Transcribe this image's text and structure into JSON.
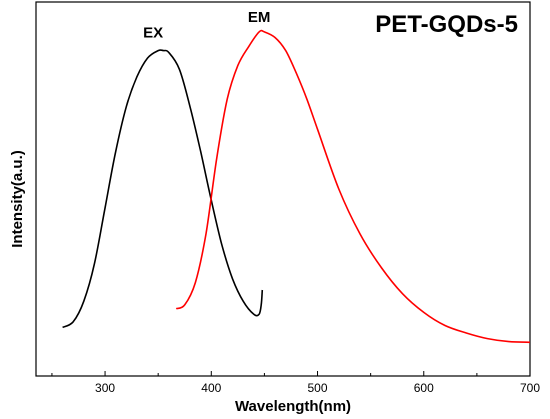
{
  "chart_data": {
    "type": "line",
    "title": "PET-GQDs-5",
    "xlabel": "Wavelength(nm)",
    "ylabel": "Intensity(a.u.)",
    "xlim": [
      235,
      700
    ],
    "ylim": [
      0,
      1
    ],
    "x_ticks": [
      300,
      400,
      500,
      600,
      700
    ],
    "y_ticks_shown": false,
    "grid": false,
    "legend": "none",
    "series": [
      {
        "name": "EX",
        "color": "#000000",
        "x": [
          260,
          270,
          280,
          290,
          300,
          310,
          320,
          330,
          340,
          350,
          355,
          360,
          370,
          380,
          390,
          400,
          410,
          420,
          430,
          440,
          445,
          447,
          448
        ],
        "y": [
          0.13,
          0.145,
          0.2,
          0.3,
          0.45,
          0.6,
          0.72,
          0.8,
          0.85,
          0.87,
          0.87,
          0.865,
          0.82,
          0.72,
          0.6,
          0.47,
          0.35,
          0.26,
          0.2,
          0.165,
          0.165,
          0.19,
          0.23
        ]
      },
      {
        "name": "EM",
        "color": "#ff0000",
        "x": [
          367,
          375,
          385,
          395,
          405,
          415,
          425,
          435,
          445,
          450,
          460,
          470,
          480,
          490,
          500,
          520,
          540,
          560,
          580,
          600,
          620,
          640,
          660,
          680,
          700
        ],
        "y": [
          0.18,
          0.19,
          0.25,
          0.38,
          0.58,
          0.74,
          0.83,
          0.88,
          0.92,
          0.92,
          0.905,
          0.87,
          0.81,
          0.74,
          0.66,
          0.5,
          0.38,
          0.29,
          0.22,
          0.17,
          0.135,
          0.115,
          0.1,
          0.092,
          0.09
        ]
      }
    ],
    "annotations": [
      {
        "text": "EX",
        "series": "EX"
      },
      {
        "text": "EM",
        "series": "EM"
      }
    ]
  }
}
